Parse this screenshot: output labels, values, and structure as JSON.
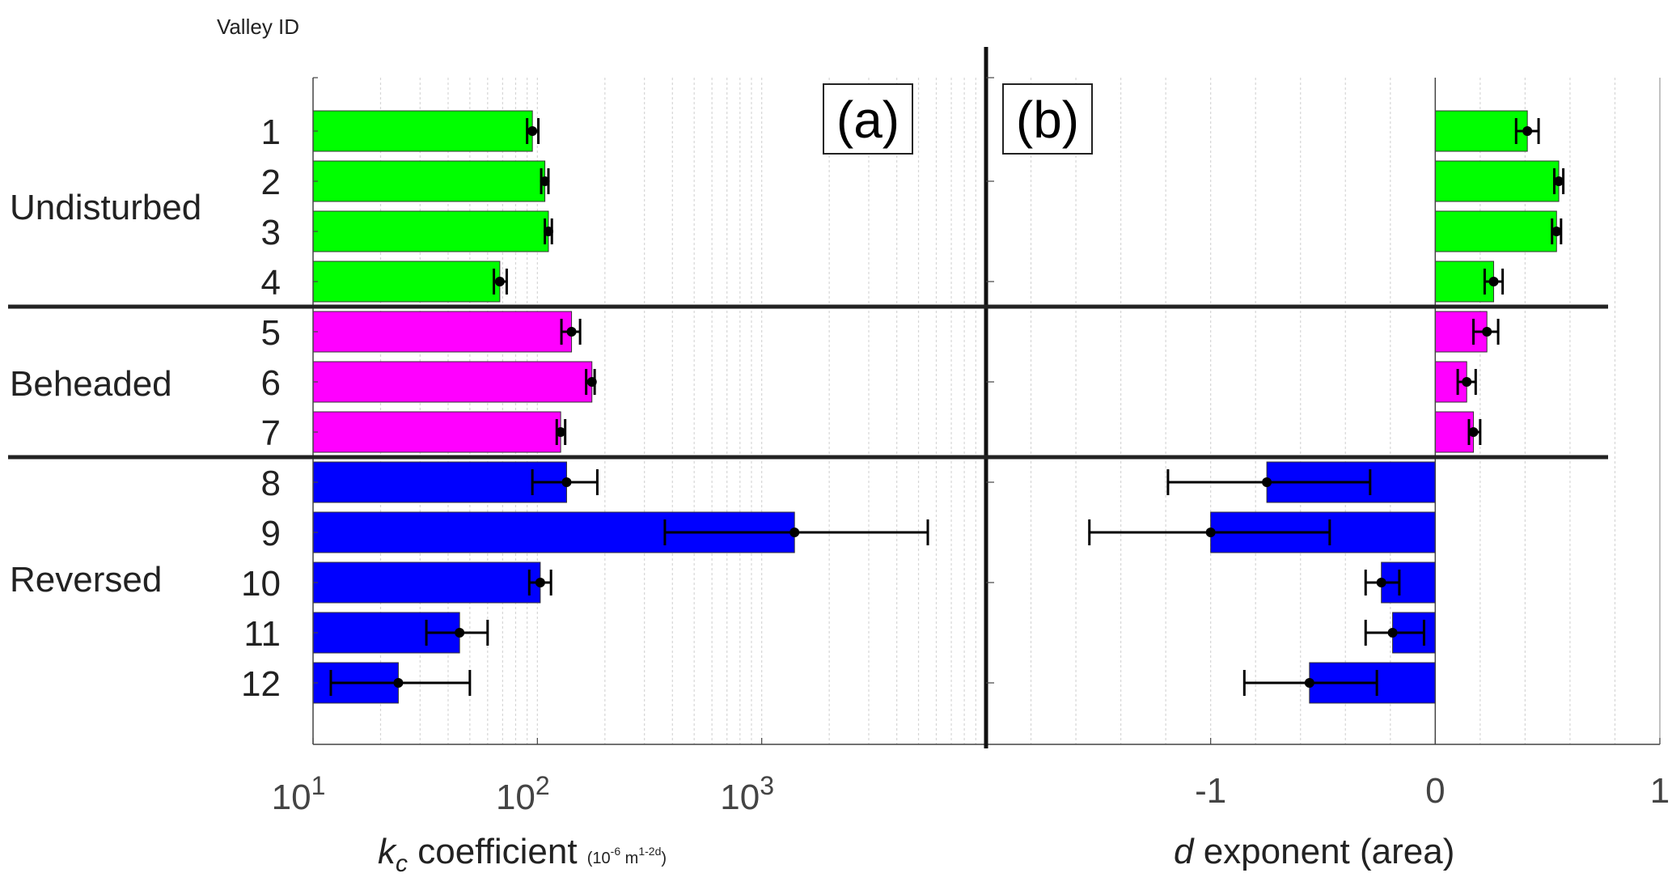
{
  "chart_data": [
    {
      "panel": "a",
      "panel_label": "(a)",
      "type": "bar",
      "orientation": "horizontal",
      "x_scale": "log",
      "xlim": [
        10,
        10000
      ],
      "x_ticks": [
        {
          "value": 10,
          "base": "10",
          "exp": "1"
        },
        {
          "value": 100,
          "base": "10",
          "exp": "2"
        },
        {
          "value": 1000,
          "base": "10",
          "exp": "3"
        }
      ],
      "xlabel": {
        "symbol": "k",
        "subscript": "c",
        "text": " coefficient ",
        "unit_pre": "(10",
        "unit_exp1": "-6",
        "unit_mid": " m",
        "unit_exp2": "1-2d",
        "unit_post": ")"
      },
      "grid": "vertical-minor",
      "categories": [
        "1",
        "2",
        "3",
        "4",
        "5",
        "6",
        "7",
        "8",
        "9",
        "10",
        "11",
        "12"
      ],
      "values": [
        95,
        108,
        112,
        68,
        142,
        175,
        127,
        135,
        1400,
        103,
        45,
        24
      ],
      "err_low": [
        90,
        104,
        108,
        64,
        128,
        165,
        122,
        95,
        370,
        92,
        32,
        12
      ],
      "err_high": [
        101,
        112,
        116,
        73,
        155,
        180,
        133,
        185,
        5500,
        115,
        60,
        50
      ],
      "colors": [
        "#00ff00",
        "#00ff00",
        "#00ff00",
        "#00ff00",
        "#ff00ff",
        "#ff00ff",
        "#ff00ff",
        "#0000ff",
        "#0000ff",
        "#0000ff",
        "#0000ff",
        "#0000ff"
      ]
    },
    {
      "panel": "b",
      "panel_label": "(b)",
      "type": "bar",
      "orientation": "horizontal",
      "x_scale": "linear",
      "xlim": [
        -2,
        1
      ],
      "x_ticks": [
        {
          "value": -1,
          "label": "-1"
        },
        {
          "value": 0,
          "label": "0"
        },
        {
          "value": 1,
          "label": "1"
        }
      ],
      "xlabel": {
        "symbol": "d",
        "text": " exponent (area)"
      },
      "grid": "vertical-minor",
      "categories": [
        "1",
        "2",
        "3",
        "4",
        "5",
        "6",
        "7",
        "8",
        "9",
        "10",
        "11",
        "12"
      ],
      "values": [
        0.41,
        0.55,
        0.54,
        0.26,
        0.23,
        0.14,
        0.17,
        -0.75,
        -1.0,
        -0.24,
        -0.19,
        -0.56
      ],
      "err_low": [
        0.36,
        0.53,
        0.52,
        0.22,
        0.17,
        0.1,
        0.15,
        -1.19,
        -1.54,
        -0.31,
        -0.31,
        -0.85
      ],
      "err_high": [
        0.46,
        0.57,
        0.56,
        0.3,
        0.28,
        0.18,
        0.2,
        -0.29,
        -0.47,
        -0.16,
        -0.05,
        -0.26
      ],
      "colors": [
        "#00ff00",
        "#00ff00",
        "#00ff00",
        "#00ff00",
        "#ff00ff",
        "#ff00ff",
        "#ff00ff",
        "#0000ff",
        "#0000ff",
        "#0000ff",
        "#0000ff",
        "#0000ff"
      ]
    }
  ],
  "row_header": "Valley ID",
  "groups": [
    {
      "label": "Undisturbed",
      "rows": [
        1,
        4
      ]
    },
    {
      "label": "Beheaded",
      "rows": [
        5,
        7
      ]
    },
    {
      "label": "Reversed",
      "rows": [
        8,
        12
      ]
    }
  ]
}
